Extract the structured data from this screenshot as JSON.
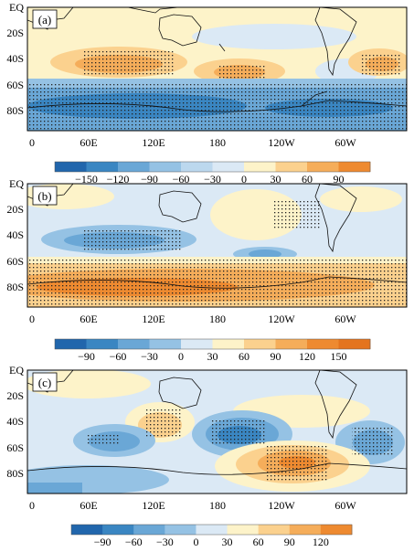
{
  "panels": [
    {
      "label": "(a)",
      "y_ticks": [
        "EQ",
        "20S",
        "40S",
        "60S",
        "80S"
      ],
      "x_ticks": [
        "0",
        "60E",
        "120E",
        "180",
        "120W",
        "60W"
      ],
      "colorbar": {
        "ticks": [
          "−150",
          "−120",
          "−90",
          "−60",
          "−30",
          "0",
          "30",
          "60",
          "90"
        ],
        "colors": [
          "#2166ac",
          "#3a86c2",
          "#6aa7d6",
          "#95c2e4",
          "#bcd8ee",
          "#dbe9f5",
          "#fdf3c9",
          "#fbd18e",
          "#f5ad5a",
          "#ee8a30"
        ]
      }
    },
    {
      "label": "(b)",
      "y_ticks": [
        "EQ",
        "20S",
        "40S",
        "60S",
        "80S"
      ],
      "x_ticks": [
        "0",
        "60E",
        "120E",
        "180",
        "120W",
        "60W"
      ],
      "colorbar": {
        "ticks": [
          "−90",
          "−60",
          "−30",
          "0",
          "30",
          "60",
          "90",
          "120",
          "150"
        ],
        "colors": [
          "#2166ac",
          "#3a86c2",
          "#6aa7d6",
          "#95c2e4",
          "#dbe9f5",
          "#fdf3c9",
          "#fbd18e",
          "#f5ad5a",
          "#ee8a30",
          "#e4741e"
        ]
      }
    },
    {
      "label": "(c)",
      "y_ticks": [
        "EQ",
        "20S",
        "40S",
        "60S",
        "80S"
      ],
      "x_ticks": [
        "0",
        "60E",
        "120E",
        "180",
        "120W",
        "60W"
      ],
      "colorbar": {
        "ticks": [
          "−90",
          "−60",
          "−30",
          "0",
          "30",
          "60",
          "90",
          "120"
        ],
        "colors": [
          "#2166ac",
          "#3a86c2",
          "#6aa7d6",
          "#95c2e4",
          "#dbe9f5",
          "#fdf3c9",
          "#fbd18e",
          "#f5ad5a",
          "#ee8a30"
        ]
      }
    }
  ]
}
